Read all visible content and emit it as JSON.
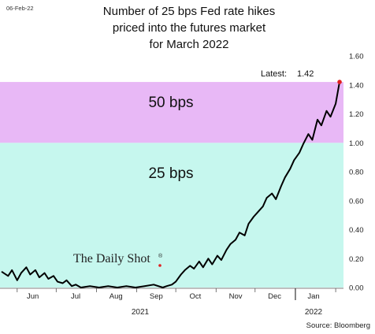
{
  "date_stamp": "06-Feb-22",
  "title_lines": [
    "Number of 25 bps Fed rate hikes",
    "priced into the futures market",
    "for March 2022"
  ],
  "brand": "The Daily Shot",
  "brand_mark": "®",
  "source": "Source: Bloomberg",
  "colors": {
    "band_25": "#c6f7ee",
    "band_50": "#e8b8f6",
    "line": "#000000",
    "latest_dot": "#e02020",
    "brand_dot": "#e02020"
  },
  "chart_data": {
    "type": "line",
    "title": "Number of 25 bps Fed rate hikes priced into the futures market for March 2022",
    "xlabel": "",
    "ylabel": "",
    "ylim": [
      0,
      1.6
    ],
    "y_ticks": [
      "0.00",
      "0.20",
      "0.40",
      "0.60",
      "0.80",
      "1.00",
      "1.20",
      "1.40",
      "1.60"
    ],
    "y_tick_values": [
      0,
      0.2,
      0.4,
      0.6,
      0.8,
      1.0,
      1.2,
      1.4,
      1.6
    ],
    "x_ticks": [
      "Jun",
      "Jul",
      "Aug",
      "Sep",
      "Oct",
      "Nov",
      "Dec",
      "Jan"
    ],
    "year_labels": [
      "2021",
      "2022"
    ],
    "bands": [
      {
        "label": "25 bps",
        "from": 0,
        "to": 1.0
      },
      {
        "label": "50 bps",
        "from": 1.0,
        "to": 1.42
      }
    ],
    "latest": {
      "label": "Latest:",
      "value": "1.42",
      "date": "2022-02-04"
    },
    "grid": false,
    "series": [
      {
        "x": [
          "2021-05-20",
          "2021-05-25",
          "2021-05-28",
          "2021-06-01",
          "2021-06-04",
          "2021-06-08",
          "2021-06-11",
          "2021-06-15",
          "2021-06-18",
          "2021-06-22",
          "2021-06-25",
          "2021-06-29",
          "2021-07-02",
          "2021-07-06",
          "2021-07-09",
          "2021-07-13",
          "2021-07-16",
          "2021-07-20",
          "2021-07-27",
          "2021-08-03",
          "2021-08-10",
          "2021-08-17",
          "2021-08-24",
          "2021-08-31",
          "2021-09-07",
          "2021-09-14",
          "2021-09-21",
          "2021-09-24",
          "2021-09-28",
          "2021-10-01",
          "2021-10-05",
          "2021-10-08",
          "2021-10-12",
          "2021-10-15",
          "2021-10-19",
          "2021-10-22",
          "2021-10-26",
          "2021-10-29",
          "2021-11-02",
          "2021-11-05",
          "2021-11-09",
          "2021-11-12",
          "2021-11-16",
          "2021-11-19",
          "2021-11-23",
          "2021-11-26",
          "2021-11-30",
          "2021-12-03",
          "2021-12-07",
          "2021-12-10",
          "2021-12-14",
          "2021-12-17",
          "2021-12-21",
          "2021-12-24",
          "2021-12-28",
          "2021-12-31",
          "2022-01-04",
          "2022-01-07",
          "2022-01-11",
          "2022-01-14",
          "2022-01-18",
          "2022-01-21",
          "2022-01-25",
          "2022-01-28",
          "2022-02-01",
          "2022-02-04"
        ],
        "values": [
          0.11,
          0.08,
          0.12,
          0.05,
          0.1,
          0.14,
          0.09,
          0.12,
          0.07,
          0.1,
          0.06,
          0.08,
          0.04,
          0.03,
          0.05,
          0.01,
          0.02,
          0.0,
          0.01,
          0.0,
          0.01,
          0.0,
          0.01,
          0.0,
          0.01,
          0.02,
          0.0,
          0.01,
          0.02,
          0.04,
          0.09,
          0.12,
          0.15,
          0.13,
          0.18,
          0.14,
          0.2,
          0.16,
          0.22,
          0.19,
          0.26,
          0.3,
          0.33,
          0.38,
          0.36,
          0.44,
          0.49,
          0.52,
          0.56,
          0.62,
          0.65,
          0.61,
          0.7,
          0.76,
          0.82,
          0.88,
          0.93,
          0.99,
          1.06,
          1.02,
          1.16,
          1.12,
          1.22,
          1.18,
          1.27,
          1.42
        ]
      }
    ]
  }
}
